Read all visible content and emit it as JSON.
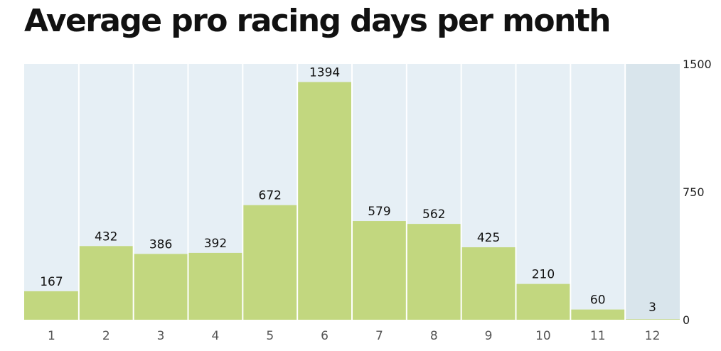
{
  "chart_data": {
    "type": "bar",
    "title": "Average pro racing days per month",
    "categories": [
      "1",
      "2",
      "3",
      "4",
      "5",
      "6",
      "7",
      "8",
      "9",
      "10",
      "11",
      "12"
    ],
    "values": [
      167,
      432,
      386,
      392,
      672,
      1394,
      579,
      562,
      425,
      210,
      60,
      3
    ],
    "data_labels": [
      "167",
      "432",
      "386",
      "392",
      "672",
      "1394",
      "579",
      "562",
      "425",
      "210",
      "60",
      "3"
    ],
    "xlabel": "",
    "ylabel": "",
    "ylim": [
      0,
      1500
    ],
    "yticks": [
      "0",
      "750",
      "1500"
    ],
    "y_axis_side": "right",
    "grid": false,
    "legend": "none",
    "highlight_category": "12",
    "colors": {
      "bar": "#c2d77f",
      "column_background": "#e6eff5",
      "highlight_background": "#d9e5ec",
      "separator": "#ffffff"
    }
  }
}
